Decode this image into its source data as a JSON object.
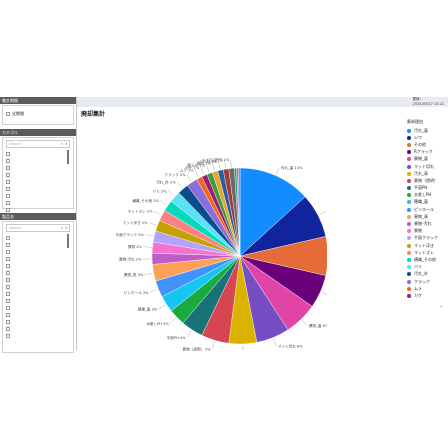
{
  "sidebar": {
    "aggregation_header": "集計期間",
    "period_item": "全期間",
    "category_header": "カテゴリ",
    "product_header": "製品名",
    "search_placeholder": "Search",
    "category_rows": 9,
    "product_rows": 15
  },
  "header": {
    "update_label": "更新:",
    "update_time": "2025/03/27 15:22"
  },
  "main": {
    "title": "廃却集計",
    "legend_title": "廃却理由"
  },
  "chart_data": {
    "type": "pie",
    "title": "廃却集計",
    "legend_title": "廃却理由",
    "slices": [
      {
        "label": "汚れ_裏",
        "value": 13,
        "color": "#118dff"
      },
      {
        "label": "シワ",
        "value": 8,
        "color": "#12239e"
      },
      {
        "label": "その他",
        "value": 7,
        "color": "#e66c37"
      },
      {
        "label": "Rクラック",
        "value": 6,
        "color": "#6b007b"
      },
      {
        "label": "異物_裏",
        "value": 6,
        "color": "#e044a7"
      },
      {
        "label": "マット切れ",
        "value": 6,
        "color": "#744ec2"
      },
      {
        "label": "汚れ_表",
        "value": 5,
        "color": "#d9b300"
      },
      {
        "label": "異物（透明）",
        "value": 5,
        "color": "#d64550"
      },
      {
        "label": "平面PH",
        "value": 4,
        "color": "#197278"
      },
      {
        "label": "水差しPH",
        "value": 3,
        "color": "#1aab40"
      },
      {
        "label": "穂縄_裏",
        "value": 3,
        "color": "#15c6f4"
      },
      {
        "label": "ピンホール",
        "value": 3,
        "color": "#4092ff"
      },
      {
        "label": "異物_表",
        "value": 3,
        "color": "#ffa058"
      },
      {
        "label": "異物-汚れ",
        "value": 2,
        "color": "#be5dc9"
      },
      {
        "label": "異物",
        "value": 2,
        "color": "#f472d0"
      },
      {
        "label": "平面クラック",
        "value": 2,
        "color": "#b5a1ff"
      },
      {
        "label": "マット浮き",
        "value": 2,
        "color": "#c4a200"
      },
      {
        "label": "マットズレ",
        "value": 2,
        "color": "#ff8080"
      },
      {
        "label": "横縄_その他",
        "value": 2,
        "color": "#00dbbc"
      },
      {
        "label": "バリ",
        "value": 2,
        "color": "#5be0f6"
      },
      {
        "label": "汚れ_外",
        "value": 2,
        "color": "#0b4c8c"
      },
      {
        "label": "クラック",
        "value": 2,
        "color": "#8a6edb"
      },
      {
        "label": "ムラ",
        "value": 1,
        "color": "#f0671f"
      },
      {
        "label": "カケ",
        "value": 1,
        "color": "#9b1d6e"
      },
      {
        "label": "膨らみ",
        "value": 1,
        "color": "#3b9c3f"
      },
      {
        "label": "傷内",
        "value": 1,
        "color": "#e2a82d"
      },
      {
        "label": "ドフロ",
        "value": 1,
        "color": "#2c5d9e"
      },
      {
        "label": "キズ凹凸",
        "value": 1,
        "color": "#a03b3b"
      },
      {
        "label": "折り",
        "value": 1,
        "color": "#6a6a6a"
      },
      {
        "label": "",
        "value": 0.4,
        "color": "#23a47a"
      },
      {
        "label": "",
        "value": 0.3,
        "color": "#a86bd4"
      },
      {
        "label": "",
        "value": 0.3,
        "color": "#d44c8a"
      }
    ],
    "slice_labels": [
      "汚れ_裏 13%",
      "シワ 8%",
      "その他 7%",
      "Rクラック 6%",
      "異物_裏 6%",
      "マット切れ 6%",
      "汚れ_表 5%",
      "異物（透明） 5%",
      "平面PH 4%",
      "水差しPH 3%",
      "穂縄_裏 3%",
      "ピンホール 3%",
      "異物_表 3%",
      "異物-汚れ 2%",
      "異物 2%",
      "平面クラック 2%",
      "マット浮き 2%",
      "マットズレ 2%",
      "横縄_その他 2%",
      "バリ 2%",
      "汚れ_外 2%",
      "クラック 2%",
      "ムラ 1%",
      "カケ 1%",
      "膨らみ 1%",
      "傷内 1%",
      "ドフロ 1%",
      "キズ凹凸 1%",
      "折り 1%"
    ],
    "legend_entries": [
      "汚れ_裏",
      "シワ",
      "その他",
      "Rクラック",
      "異物_裏",
      "マット切れ",
      "汚れ_表",
      "異物（透明）",
      "平面PH",
      "水差しPH",
      "穂縄_裏",
      "ピンホール",
      "異物_表",
      "異物-汚れ",
      "異物",
      "平面クラック",
      "マット浮き",
      "マットズレ",
      "横縄_その他",
      "バリ",
      "汚れ_外",
      "クラック",
      "ムラ",
      "カケ"
    ],
    "legend_placement": "right"
  }
}
